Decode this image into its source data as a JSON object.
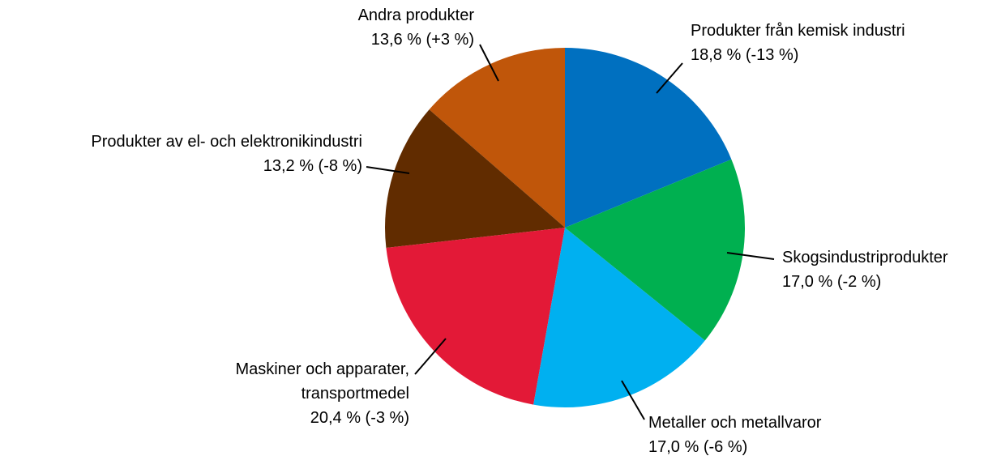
{
  "chart_data": {
    "type": "pie",
    "categories": [
      "Produkter från kemisk industri",
      "Skogsindustriprodukter",
      "Metaller och metallvaror",
      "Maskiner och apparater, transportmedel",
      "Produkter av el- och elektronikindustri",
      "Andra produkter"
    ],
    "values": [
      18.8,
      17.0,
      17.0,
      20.4,
      13.2,
      13.6
    ],
    "value_labels": [
      "18,8 % (-13 %)",
      "17,0 % (-2 %)",
      "17,0 % (-6 %)",
      "20,4 % (-3 %)",
      "13,2 % (-8 %)",
      "13,6 % (+3 %)"
    ],
    "colors": [
      "#0070c0",
      "#00b050",
      "#00b0f0",
      "#e31937",
      "#612c00",
      "#c0560a"
    ]
  }
}
